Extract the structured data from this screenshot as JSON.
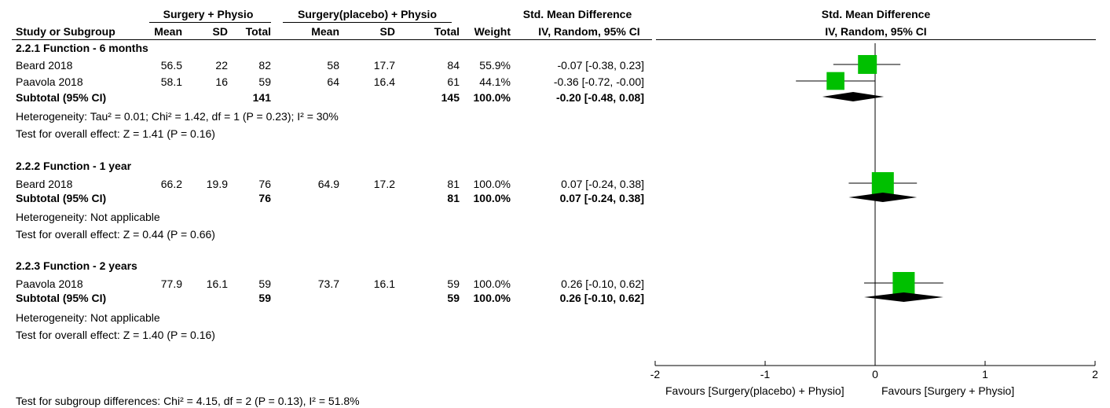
{
  "headers": {
    "group1": "Surgery + Physio",
    "group2": "Surgery(placebo) + Physio",
    "smd_title": "Std. Mean Difference",
    "smd_method": "IV, Random, 95% CI",
    "plot_title": "Std. Mean Difference",
    "plot_method": "IV, Random, 95% CI",
    "study": "Study or Subgroup",
    "mean1": "Mean",
    "sd1": "SD",
    "total1": "Total",
    "mean2": "Mean",
    "sd2": "SD",
    "total2": "Total",
    "weight": "Weight"
  },
  "subgroups": [
    {
      "title": "2.2.1 Function - 6 months",
      "studies": [
        {
          "name": "Beard 2018",
          "mean1": "56.5",
          "sd1": "22",
          "n1": "82",
          "mean2": "58",
          "sd2": "17.7",
          "n2": "84",
          "weight": "55.9%",
          "ci": "-0.07 [-0.38, 0.23]"
        },
        {
          "name": "Paavola 2018",
          "mean1": "58.1",
          "sd1": "16",
          "n1": "59",
          "mean2": "64",
          "sd2": "16.4",
          "n2": "61",
          "weight": "44.1%",
          "ci": "-0.36 [-0.72, -0.00]"
        }
      ],
      "subtotal": {
        "label": "Subtotal (95% CI)",
        "n1": "141",
        "n2": "145",
        "weight": "100.0%",
        "ci": "-0.20 [-0.48, 0.08]"
      },
      "heterogeneity": "Heterogeneity: Tau² = 0.01; Chi² = 1.42, df = 1 (P = 0.23); I² = 30%",
      "overall": "Test for overall effect: Z = 1.41 (P = 0.16)"
    },
    {
      "title": "2.2.2 Function - 1 year",
      "studies": [
        {
          "name": "Beard 2018",
          "mean1": "66.2",
          "sd1": "19.9",
          "n1": "76",
          "mean2": "64.9",
          "sd2": "17.2",
          "n2": "81",
          "weight": "100.0%",
          "ci": "0.07 [-0.24, 0.38]"
        }
      ],
      "subtotal": {
        "label": "Subtotal (95% CI)",
        "n1": "76",
        "n2": "81",
        "weight": "100.0%",
        "ci": "0.07 [-0.24, 0.38]"
      },
      "heterogeneity": "Heterogeneity: Not applicable",
      "overall": "Test for overall effect: Z = 0.44 (P = 0.66)"
    },
    {
      "title": "2.2.3 Function - 2 years",
      "studies": [
        {
          "name": "Paavola 2018",
          "mean1": "77.9",
          "sd1": "16.1",
          "n1": "59",
          "mean2": "73.7",
          "sd2": "16.1",
          "n2": "59",
          "weight": "100.0%",
          "ci": "0.26 [-0.10, 0.62]"
        }
      ],
      "subtotal": {
        "label": "Subtotal (95% CI)",
        "n1": "59",
        "n2": "59",
        "weight": "100.0%",
        "ci": "0.26 [-0.10, 0.62]"
      },
      "heterogeneity": "Heterogeneity: Not applicable",
      "overall": "Test for overall effect: Z = 1.40 (P = 0.16)"
    }
  ],
  "subgroup_differences": "Test for subgroup differences: Chi² = 4.15, df = 2 (P = 0.13), I² = 51.8%",
  "favours": {
    "left": "Favours [Surgery(placebo) + Physio]",
    "right": "Favours [Surgery + Physio]"
  },
  "colors": {
    "study_marker": "#00c000",
    "diamond": "#000000",
    "line": "#000000"
  },
  "chart_data": {
    "type": "forest",
    "xlim": [
      -2,
      2
    ],
    "xticks": [
      -2,
      -1,
      0,
      1,
      2
    ],
    "tick_labels": [
      "-2",
      "-1",
      "0",
      "1",
      "2"
    ],
    "rows": [
      {
        "kind": "study",
        "label": "Beard 2018",
        "subgroup": "2.2.1 Function - 6 months",
        "est": -0.07,
        "lo": -0.38,
        "hi": 0.23,
        "weight": 55.9
      },
      {
        "kind": "study",
        "label": "Paavola 2018",
        "subgroup": "2.2.1 Function - 6 months",
        "est": -0.36,
        "lo": -0.72,
        "hi": -0.0,
        "weight": 44.1
      },
      {
        "kind": "subtotal",
        "label": "Subtotal (95% CI)",
        "subgroup": "2.2.1 Function - 6 months",
        "est": -0.2,
        "lo": -0.48,
        "hi": 0.08
      },
      {
        "kind": "study",
        "label": "Beard 2018",
        "subgroup": "2.2.2 Function - 1 year",
        "est": 0.07,
        "lo": -0.24,
        "hi": 0.38,
        "weight": 100.0
      },
      {
        "kind": "subtotal",
        "label": "Subtotal (95% CI)",
        "subgroup": "2.2.2 Function - 1 year",
        "est": 0.07,
        "lo": -0.24,
        "hi": 0.38
      },
      {
        "kind": "study",
        "label": "Paavola 2018",
        "subgroup": "2.2.3 Function - 2 years",
        "est": 0.26,
        "lo": -0.1,
        "hi": 0.62,
        "weight": 100.0
      },
      {
        "kind": "subtotal",
        "label": "Subtotal (95% CI)",
        "subgroup": "2.2.3 Function - 2 years",
        "est": 0.26,
        "lo": -0.1,
        "hi": 0.62
      }
    ]
  }
}
